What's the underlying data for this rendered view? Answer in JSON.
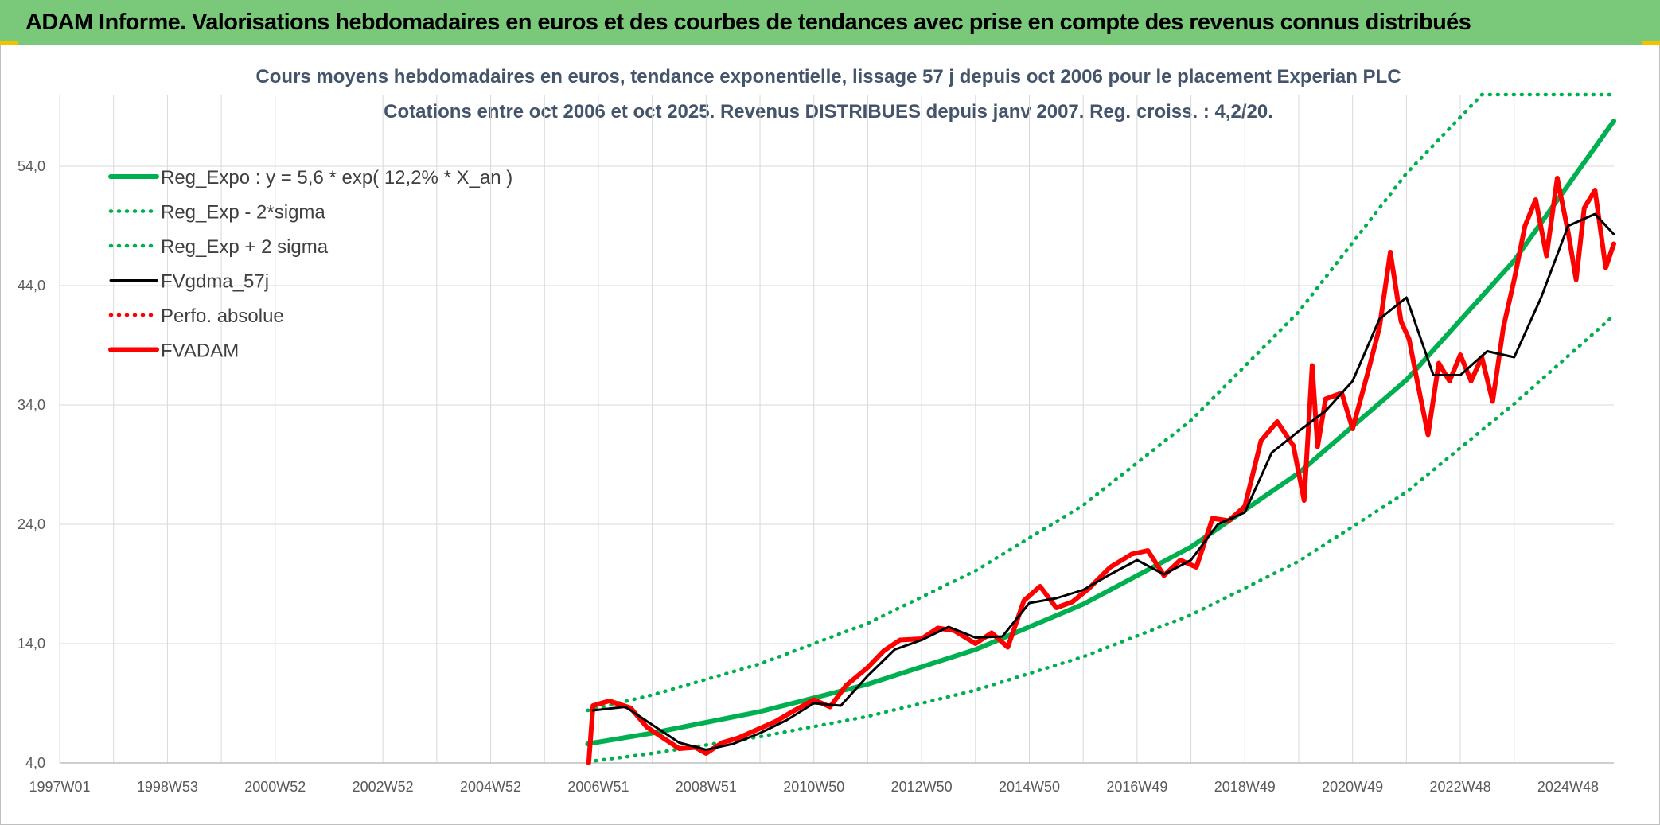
{
  "banner": {
    "title": "ADAM Informe. Valorisations hebdomadaires en euros et des courbes de tendances avec prise en compte des revenus connus distribués",
    "color": "#7ac97a"
  },
  "colors": {
    "trend": "#00b050",
    "price": "#ff0000",
    "smooth": "#000000",
    "grid": "#d9d9d9"
  },
  "chart_data": {
    "type": "line",
    "title": "Cours moyens hebdomadaires en euros, tendance exponentielle, lissage 57 j depuis oct 2006 pour le placement Experian PLC",
    "subtitle": "Cotations entre oct 2006 et oct 2025. Revenus DISTRIBUES depuis janv 2007. Reg. croiss. : 4,2/20.",
    "xlabel": "",
    "ylabel": "",
    "x_range": [
      1997.0,
      2025.85
    ],
    "ylim": [
      4.0,
      60.0
    ],
    "y_ticks": [
      "4,0",
      "14,0",
      "24,0",
      "34,0",
      "44,0",
      "54,0"
    ],
    "y_tick_values": [
      4,
      14,
      24,
      34,
      44,
      54
    ],
    "x_ticks": [
      "1997W01",
      "1998W53",
      "2000W52",
      "2002W52",
      "2004W52",
      "2006W51",
      "2008W51",
      "2010W50",
      "2012W50",
      "2014W50",
      "2016W49",
      "2018W49",
      "2020W49",
      "2022W48",
      "2024W48"
    ],
    "x_tick_values": [
      1997.0,
      1999.0,
      2001.0,
      2003.0,
      2005.0,
      2007.0,
      2009.0,
      2011.0,
      2013.0,
      2015.0,
      2017.0,
      2019.0,
      2021.0,
      2023.0,
      2025.0
    ],
    "grid": "vertical and horizontal",
    "legend_position": "top-left",
    "series": [
      {
        "name": "Reg_Expo : y = 5,6 * exp( 12,2% *  X_an )",
        "style": "solid-thick",
        "color": "#00b050",
        "x": [
          2006.8,
          2008.0,
          2010.0,
          2012.0,
          2014.0,
          2016.0,
          2018.0,
          2020.0,
          2022.0,
          2024.0,
          2025.85
        ],
        "values": [
          5.6,
          6.5,
          8.3,
          10.6,
          13.5,
          17.3,
          22.1,
          28.3,
          36.1,
          46.1,
          57.8
        ]
      },
      {
        "name": "Reg_Exp - 2*sigma",
        "style": "dotted",
        "color": "#00b050",
        "x": [
          2006.8,
          2008.0,
          2010.0,
          2012.0,
          2014.0,
          2016.0,
          2018.0,
          2020.0,
          2022.0,
          2024.0,
          2025.85
        ],
        "values": [
          4.1,
          4.8,
          6.2,
          7.9,
          10.1,
          12.9,
          16.4,
          20.9,
          26.7,
          34.1,
          41.5
        ]
      },
      {
        "name": "Reg_Exp + 2 sigma",
        "style": "dotted",
        "color": "#00b050",
        "x": [
          2006.8,
          2008.0,
          2010.0,
          2012.0,
          2014.0,
          2016.0,
          2018.0,
          2020.0,
          2022.0,
          2023.4,
          2025.85
        ],
        "values": [
          8.4,
          9.7,
          12.3,
          15.7,
          20.1,
          25.6,
          32.7,
          41.8,
          53.4,
          60.0,
          60.0
        ]
      },
      {
        "name": "FVgdma_57j",
        "style": "solid",
        "color": "#000000",
        "x": [
          2006.9,
          2007.5,
          2008.0,
          2008.5,
          2009.0,
          2009.5,
          2010.0,
          2010.5,
          2011.0,
          2011.5,
          2012.0,
          2012.5,
          2013.0,
          2013.5,
          2014.0,
          2014.5,
          2015.0,
          2015.5,
          2016.0,
          2016.5,
          2017.0,
          2017.5,
          2018.0,
          2018.5,
          2019.0,
          2019.5,
          2020.0,
          2020.5,
          2021.0,
          2021.5,
          2022.0,
          2022.5,
          2023.0,
          2023.5,
          2024.0,
          2024.5,
          2025.0,
          2025.5,
          2025.85
        ],
        "values": [
          8.4,
          8.7,
          7.2,
          5.7,
          5.1,
          5.6,
          6.5,
          7.6,
          9.0,
          8.8,
          11.3,
          13.5,
          14.3,
          15.4,
          14.5,
          14.6,
          17.4,
          17.8,
          18.5,
          19.8,
          21.0,
          19.8,
          21.0,
          24.0,
          25.0,
          30.0,
          31.8,
          33.5,
          36.0,
          41.2,
          43.0,
          36.5,
          36.5,
          38.5,
          38.0,
          43.0,
          49.0,
          50.0,
          48.3
        ]
      },
      {
        "name": "Perfo. absolue",
        "style": "dotted",
        "color": "#ff0000",
        "x": [],
        "values": []
      },
      {
        "name": "FVADAM",
        "style": "solid-thick",
        "color": "#ff0000",
        "x": [
          2006.82,
          2006.9,
          2007.2,
          2007.6,
          2007.9,
          2008.2,
          2008.5,
          2008.8,
          2009.0,
          2009.3,
          2009.6,
          2010.0,
          2010.3,
          2010.6,
          2011.0,
          2011.3,
          2011.6,
          2012.0,
          2012.3,
          2012.6,
          2013.0,
          2013.3,
          2013.6,
          2014.0,
          2014.3,
          2014.6,
          2014.9,
          2015.2,
          2015.5,
          2015.8,
          2016.1,
          2016.5,
          2016.9,
          2017.2,
          2017.5,
          2017.8,
          2018.1,
          2018.4,
          2018.7,
          2019.0,
          2019.3,
          2019.6,
          2019.9,
          2020.1,
          2020.25,
          2020.35,
          2020.5,
          2020.8,
          2021.0,
          2021.3,
          2021.5,
          2021.7,
          2021.9,
          2022.05,
          2022.2,
          2022.4,
          2022.6,
          2022.8,
          2023.0,
          2023.2,
          2023.4,
          2023.6,
          2023.8,
          2024.0,
          2024.2,
          2024.4,
          2024.6,
          2024.8,
          2025.0,
          2025.15,
          2025.3,
          2025.5,
          2025.7,
          2025.85
        ],
        "values": [
          4.0,
          8.8,
          9.2,
          8.6,
          7.0,
          6.1,
          5.2,
          5.3,
          4.8,
          5.7,
          6.1,
          6.9,
          7.5,
          8.3,
          9.3,
          8.7,
          10.5,
          12.0,
          13.4,
          14.3,
          14.4,
          15.3,
          15.1,
          14.0,
          14.9,
          13.7,
          17.6,
          18.8,
          17.0,
          17.5,
          18.6,
          20.4,
          21.5,
          21.8,
          19.7,
          21.0,
          20.4,
          24.5,
          24.3,
          25.5,
          31.0,
          32.6,
          30.6,
          26.0,
          37.3,
          30.5,
          34.5,
          35.0,
          32.0,
          37.0,
          40.5,
          46.8,
          41.0,
          39.5,
          36.0,
          31.5,
          37.5,
          36.0,
          38.2,
          36.0,
          38.0,
          34.3,
          40.5,
          44.5,
          49.0,
          51.2,
          46.5,
          53.0,
          48.5,
          44.5,
          50.5,
          52.0,
          45.5,
          47.5
        ]
      }
    ]
  }
}
